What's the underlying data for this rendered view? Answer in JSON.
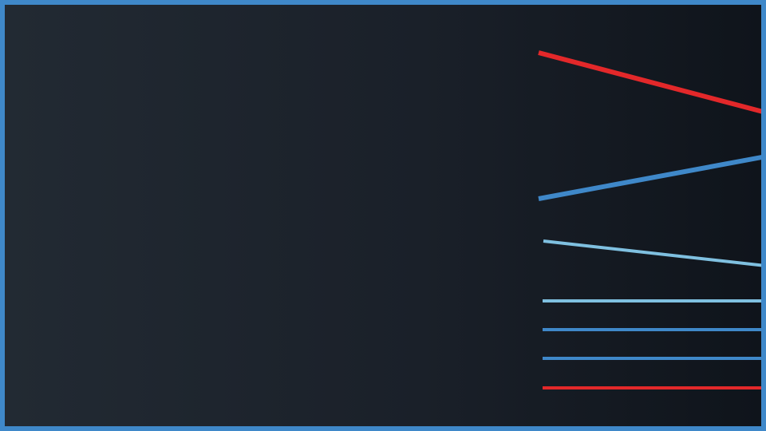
{
  "colors": {
    "frame": "#3f88c9",
    "red": "#e3282a",
    "blue": "#3f88c9",
    "light_blue": "#7fc0e0",
    "background_left": "#222a33",
    "background_right": "#0f141b"
  }
}
